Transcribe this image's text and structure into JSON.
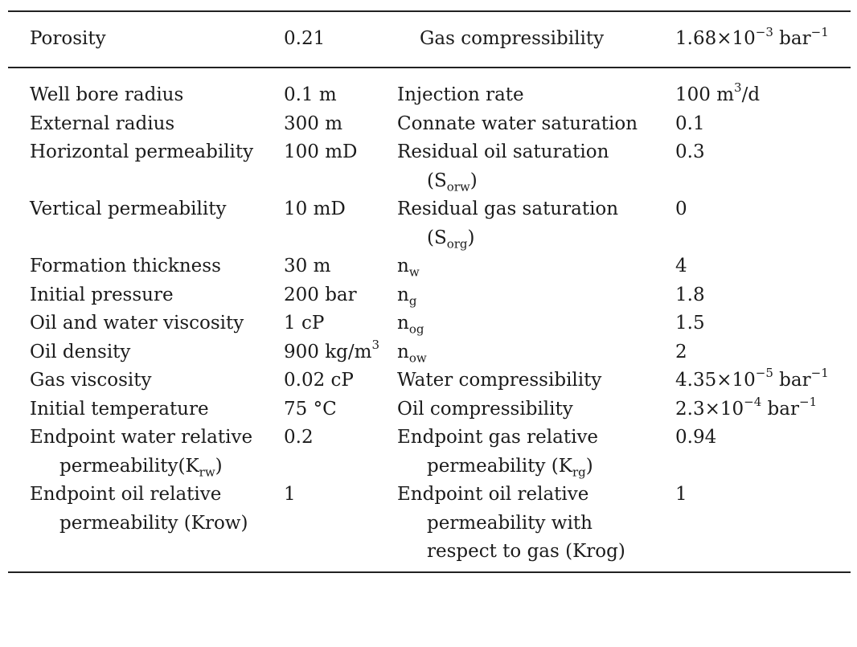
{
  "header": {
    "c1": "Porosity",
    "c2": "0.21",
    "c3": "Gas compressibility",
    "c4_mant": "1.68×10",
    "c4_exp": "−3",
    "c4_unit": " bar",
    "c4_unit_exp": "−1"
  },
  "rows": {
    "r1": {
      "c1": "Well bore radius",
      "c2": "0.1 m",
      "c3": "Injection rate",
      "c4_a": "100 m",
      "c4_sup": "3",
      "c4_b": "/d"
    },
    "r2": {
      "c1": "External radius",
      "c2": "300 m",
      "c3": "Connate water saturation",
      "c4": "0.1"
    },
    "r3": {
      "c1": "Horizontal permeability",
      "c2": "100 mD",
      "c3_a": "Residual oil saturation (S",
      "c3_sub": "orw",
      "c3_b": ")",
      "c4": "0.3"
    },
    "r4": {
      "c1": "Vertical permeability",
      "c2": "10 mD",
      "c3_a": "Residual gas saturation (S",
      "c3_sub": "org",
      "c3_b": ")",
      "c4": "0"
    },
    "r5": {
      "c1": "Formation thickness",
      "c2": "30 m",
      "c3_a": "n",
      "c3_sub": "w",
      "c4": "4"
    },
    "r6": {
      "c1": "Initial pressure",
      "c2": "200 bar",
      "c3_a": "n",
      "c3_sub": "g",
      "c4": "1.8"
    },
    "r7": {
      "c1": "Oil and water viscosity",
      "c2": "1 cP",
      "c3_a": "n",
      "c3_sub": "og",
      "c4": "1.5"
    },
    "r8": {
      "c1": "Oil density",
      "c2_a": "900 kg/m",
      "c2_sup": "3",
      "c3_a": "n",
      "c3_sub": "ow",
      "c4": "2"
    },
    "r9": {
      "c1": "Gas viscosity",
      "c2": "0.02 cP",
      "c3": "Water compressibility",
      "c4_mant": "4.35×10",
      "c4_exp": "−5",
      "c4_unit": " bar",
      "c4_unit_exp": "−1"
    },
    "r10": {
      "c1": "Initial temperature",
      "c2": "75 °C",
      "c3": "Oil compressibility",
      "c4_mant": "2.3×10",
      "c4_exp": "−4",
      "c4_unit": " bar",
      "c4_unit_exp": "−1"
    },
    "r11": {
      "c1_a": "Endpoint water relative permeability(K",
      "c1_sub": "rw",
      "c1_b": ")",
      "c2": "0.2",
      "c3_a": "Endpoint gas relative permeability (K",
      "c3_sub": "rg",
      "c3_b": ")",
      "c4": "0.94"
    },
    "r12": {
      "c1": "Endpoint oil relative permeability (Krow)",
      "c2": "1",
      "c3": "Endpoint oil relative permeability with respect to gas (Krog)",
      "c4": "1"
    }
  }
}
